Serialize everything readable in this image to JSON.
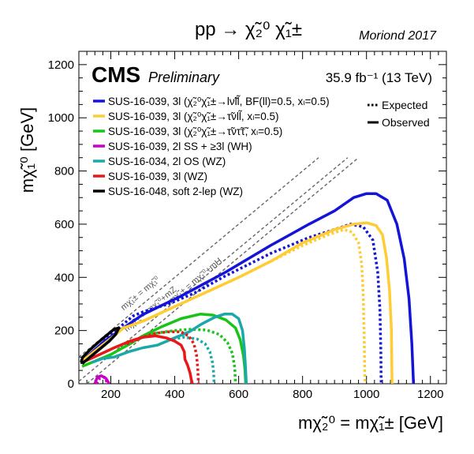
{
  "header": {
    "process": "pp → χ̃₂⁰ χ̃₁±",
    "conference": "Moriond 2017"
  },
  "cms": {
    "logo": "CMS",
    "status": "Preliminary",
    "lumi": "35.9 fb⁻¹ (13 TeV)"
  },
  "chart_data": {
    "type": "line",
    "xlabel": "mχ̃₂⁰ = mχ̃₁± [GeV]",
    "ylabel": "mχ̃₁⁰ [GeV]",
    "xlim": [
      100,
      1250
    ],
    "ylim": [
      0,
      1250
    ],
    "x_ticks": [
      200,
      400,
      600,
      800,
      1000,
      1200
    ],
    "y_ticks": [
      0,
      200,
      400,
      600,
      800,
      1000,
      1200
    ],
    "grid": false,
    "legend_position": "top-left",
    "style_legend": [
      {
        "label": "Expected",
        "dash": "dotted"
      },
      {
        "label": "Observed",
        "dash": "solid"
      }
    ],
    "diagonals": [
      {
        "label": "mχ̃₁± = mχ̃₁⁰",
        "offset": 0
      },
      {
        "label": "mχ̃₁± = mχ̃₁⁰+mZ",
        "offset": 91
      },
      {
        "label": "mχ̃₁± = mχ̃₁⁰+mH",
        "offset": 125
      }
    ],
    "series": [
      {
        "name": "SUS-16-039, 3l (χ̃₂⁰χ̃₁±→lν̃ll̃, BF(ll)=0.5, xₗ=0.5)",
        "color": "#1414d8",
        "observed": [
          [
            110,
            85
          ],
          [
            180,
            160
          ],
          [
            300,
            260
          ],
          [
            420,
            330
          ],
          [
            560,
            420
          ],
          [
            700,
            520
          ],
          [
            820,
            600
          ],
          [
            900,
            650
          ],
          [
            960,
            700
          ],
          [
            1000,
            715
          ],
          [
            1030,
            715
          ],
          [
            1065,
            690
          ],
          [
            1095,
            600
          ],
          [
            1118,
            470
          ],
          [
            1133,
            320
          ],
          [
            1142,
            150
          ],
          [
            1147,
            0
          ]
        ],
        "expected": [
          [
            115,
            85
          ],
          [
            200,
            185
          ],
          [
            270,
            255
          ],
          [
            300,
            270
          ],
          [
            380,
            300
          ],
          [
            460,
            340
          ],
          [
            550,
            400
          ],
          [
            700,
            490
          ],
          [
            820,
            550
          ],
          [
            900,
            580
          ],
          [
            950,
            600
          ],
          [
            990,
            590
          ],
          [
            1020,
            540
          ],
          [
            1035,
            420
          ],
          [
            1042,
            280
          ],
          [
            1045,
            120
          ],
          [
            1046,
            0
          ]
        ]
      },
      {
        "name": "SUS-16-039, 3l (χ̃₂⁰χ̃₁±→τ̃νll̃, xₗ=0.5)",
        "color": "#ffcc33",
        "observed": [
          [
            105,
            80
          ],
          [
            200,
            170
          ],
          [
            240,
            210
          ],
          [
            300,
            235
          ],
          [
            400,
            290
          ],
          [
            500,
            345
          ],
          [
            600,
            400
          ],
          [
            700,
            460
          ],
          [
            800,
            530
          ],
          [
            900,
            580
          ],
          [
            960,
            600
          ],
          [
            1000,
            605
          ],
          [
            1030,
            595
          ],
          [
            1050,
            560
          ],
          [
            1063,
            470
          ],
          [
            1072,
            350
          ],
          [
            1078,
            200
          ],
          [
            1080,
            0
          ]
        ],
        "expected": [
          [
            300,
            235
          ],
          [
            400,
            290
          ],
          [
            500,
            345
          ],
          [
            600,
            400
          ],
          [
            700,
            460
          ],
          [
            800,
            520
          ],
          [
            880,
            560
          ],
          [
            930,
            580
          ],
          [
            955,
            570
          ],
          [
            975,
            530
          ],
          [
            985,
            450
          ],
          [
            990,
            330
          ],
          [
            993,
            150
          ],
          [
            995,
            0
          ]
        ]
      },
      {
        "name": "SUS-16-039, 3l (χ̃₂⁰χ̃₁±→τ̃ντ̃τ̃, xₗ=0.5)",
        "color": "#19c419",
        "observed": [
          [
            110,
            65
          ],
          [
            160,
            90
          ],
          [
            200,
            110
          ],
          [
            260,
            150
          ],
          [
            300,
            180
          ],
          [
            360,
            215
          ],
          [
            420,
            245
          ],
          [
            480,
            262
          ],
          [
            520,
            258
          ],
          [
            560,
            240
          ],
          [
            590,
            210
          ],
          [
            605,
            165
          ],
          [
            615,
            105
          ],
          [
            620,
            50
          ],
          [
            622,
            0
          ]
        ],
        "expected": [
          [
            230,
            140
          ],
          [
            290,
            170
          ],
          [
            340,
            190
          ],
          [
            400,
            200
          ],
          [
            450,
            205
          ],
          [
            500,
            202
          ],
          [
            540,
            185
          ],
          [
            565,
            155
          ],
          [
            580,
            115
          ],
          [
            588,
            60
          ],
          [
            590,
            0
          ]
        ]
      },
      {
        "name": "SUS-16-039, 2l SS + ≥3l (WH)",
        "color": "#c800c8",
        "observed": [
          [
            150,
            0
          ],
          [
            158,
            25
          ],
          [
            170,
            30
          ],
          [
            185,
            20
          ],
          [
            195,
            0
          ]
        ],
        "expected": [
          [
            155,
            0
          ],
          [
            165,
            20
          ],
          [
            180,
            25
          ],
          [
            190,
            0
          ]
        ]
      },
      {
        "name": "SUS-16-034, 2l OS (WZ)",
        "color": "#1aa8a8",
        "observed": [
          [
            140,
            80
          ],
          [
            175,
            95
          ],
          [
            210,
            100
          ],
          [
            255,
            120
          ],
          [
            300,
            135
          ],
          [
            345,
            145
          ],
          [
            395,
            170
          ],
          [
            445,
            195
          ],
          [
            485,
            225
          ],
          [
            525,
            250
          ],
          [
            555,
            262
          ],
          [
            580,
            262
          ],
          [
            600,
            245
          ],
          [
            612,
            200
          ],
          [
            618,
            130
          ],
          [
            622,
            50
          ],
          [
            624,
            0
          ]
        ],
        "expected": [
          [
            380,
            165
          ],
          [
            430,
            175
          ],
          [
            470,
            168
          ],
          [
            495,
            150
          ],
          [
            510,
            120
          ],
          [
            518,
            80
          ],
          [
            522,
            40
          ],
          [
            523,
            0
          ]
        ]
      },
      {
        "name": "SUS-16-039, 3l (WZ)",
        "color": "#e81818",
        "observed": [
          [
            110,
            80
          ],
          [
            165,
            110
          ],
          [
            210,
            135
          ],
          [
            260,
            160
          ],
          [
            300,
            175
          ],
          [
            340,
            180
          ],
          [
            375,
            172
          ],
          [
            400,
            160
          ],
          [
            420,
            145
          ],
          [
            430,
            120
          ],
          [
            432,
            92
          ],
          [
            440,
            70
          ],
          [
            448,
            40
          ],
          [
            452,
            15
          ],
          [
            455,
            0
          ]
        ],
        "expected": [
          [
            250,
            150
          ],
          [
            300,
            175
          ],
          [
            340,
            190
          ],
          [
            380,
            195
          ],
          [
            420,
            195
          ],
          [
            445,
            178
          ],
          [
            460,
            150
          ],
          [
            468,
            110
          ],
          [
            472,
            60
          ],
          [
            474,
            0
          ]
        ]
      },
      {
        "name": "SUS-16-048, soft 2-lep (WZ)",
        "color": "#000000",
        "observed": [
          [
            110,
            75
          ],
          [
            125,
            90
          ],
          [
            145,
            110
          ],
          [
            170,
            135
          ],
          [
            195,
            160
          ],
          [
            215,
            185
          ],
          [
            225,
            210
          ],
          [
            210,
            205
          ],
          [
            185,
            180
          ],
          [
            160,
            155
          ],
          [
            135,
            128
          ],
          [
            112,
            100
          ],
          [
            108,
            85
          ],
          [
            110,
            75
          ]
        ],
        "expected": []
      }
    ]
  }
}
